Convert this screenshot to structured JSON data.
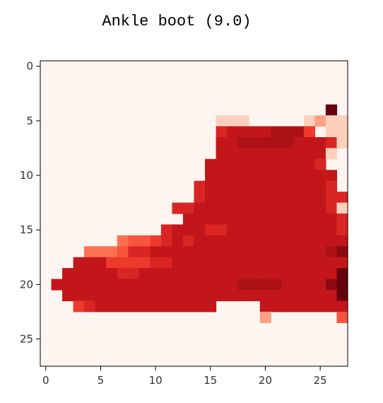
{
  "chart_data": {
    "type": "heatmap",
    "title": "Ankle boot (9.0)",
    "colormap": "Reds",
    "value_range": [
      0,
      1
    ],
    "grid": false,
    "xlim": [
      -0.5,
      27.5
    ],
    "ylim": [
      27.5,
      -0.5
    ],
    "xticks": [
      0,
      5,
      10,
      15,
      20,
      25
    ],
    "yticks": [
      0,
      5,
      10,
      15,
      20,
      25
    ],
    "xtick_labels": [
      "0",
      "5",
      "10",
      "15",
      "20",
      "25"
    ],
    "ytick_labels": [
      "0",
      "5",
      "10",
      "15",
      "20",
      "25"
    ],
    "columns": 28,
    "rows": [
      "............................",
      "............................",
      "............................",
      "............................",
      "..........................B.",
      "................aaa.....c2bb",
      "................788889996.bb",
      "................88999998887a",
      "................8888888888a.",
      "...............88888888887..",
      "...............888888888888.",
      "..............7888888888887.",
      "..............78888888888877",
      "............778888888888887a",
      ".............888888888888887",
      "...........78887788888888887",
      ".......4556787888888888888888",
      "....44457788888888888888889A",
      "...8886666778888888888888888",
      "..8888877888888888888888888B",
      ".8888888888888888899998888AB",
      "..8888888888888888888888888B",
      "...6788888888888....888888888",
      "....................2......5",
      "............................",
      "............................",
      "............................",
      "............................"
    ]
  }
}
